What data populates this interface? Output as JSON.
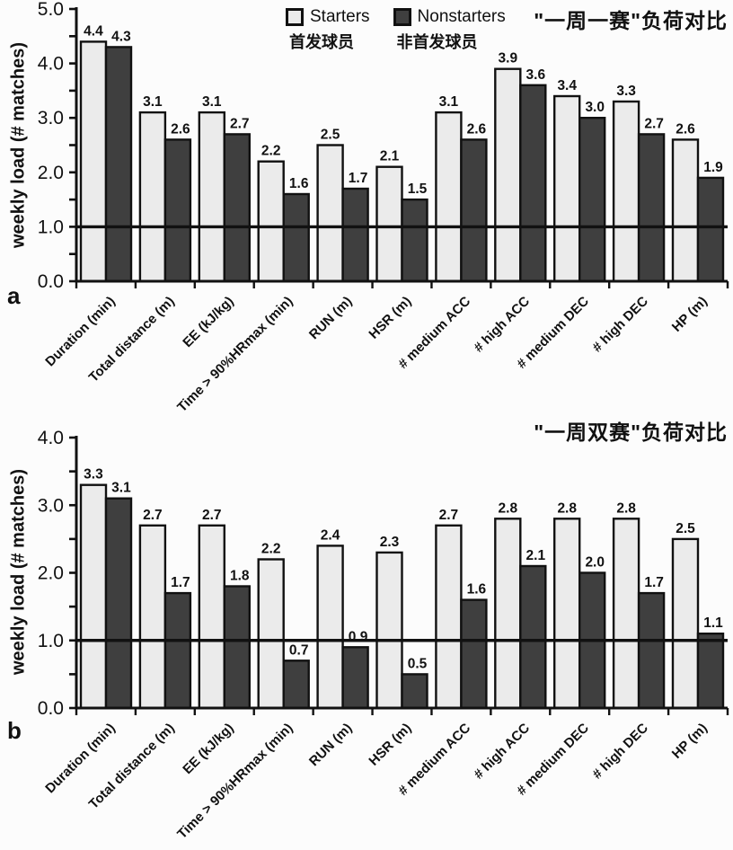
{
  "figure": {
    "background": "#fcfcfc",
    "axis_color": "#111111",
    "bar_stroke": "#111111"
  },
  "legend": {
    "items": [
      {
        "label": "Starters",
        "label_zh": "首发球员",
        "fill": "#ebebeb"
      },
      {
        "label": "Nonstarters",
        "label_zh": "非首发球员",
        "fill": "#3f3f3f"
      }
    ]
  },
  "chart_data": [
    {
      "type": "bar",
      "panel_label": "a",
      "title": "\"一周一赛\"负荷对比",
      "ylabel": "weekly load (# matches)",
      "xlabel": "",
      "ylim": [
        0.0,
        5.0
      ],
      "ytick_step": 1.0,
      "minor_tick_step": 0.5,
      "reference_line_y": 1.0,
      "grid": false,
      "legend_position": "top",
      "categories": [
        "Duration (min)",
        "Total distance (m)",
        "EE (kJ/kg)",
        "Time > 90%HRmax (min)",
        "RUN (m)",
        "HSR (m)",
        "# medium ACC",
        "# high ACC",
        "# medium DEC",
        "# high DEC",
        "HP (m)"
      ],
      "series": [
        {
          "name": "Starters",
          "fill": "#ebebeb",
          "values": [
            4.4,
            3.1,
            3.1,
            2.2,
            2.5,
            2.1,
            3.1,
            3.9,
            3.4,
            3.3,
            2.6
          ]
        },
        {
          "name": "Nonstarters",
          "fill": "#3f3f3f",
          "values": [
            4.3,
            2.6,
            2.7,
            1.6,
            1.7,
            1.5,
            2.6,
            3.6,
            3.0,
            2.7,
            1.9
          ]
        }
      ]
    },
    {
      "type": "bar",
      "panel_label": "b",
      "title": "\"一周双赛\"负荷对比",
      "ylabel": "weekly load (# matches)",
      "xlabel": "",
      "ylim": [
        0.0,
        4.0
      ],
      "ytick_step": 1.0,
      "minor_tick_step": 0.5,
      "reference_line_y": 1.0,
      "grid": false,
      "legend_position": "none",
      "categories": [
        "Duration (min)",
        "Total distance (m)",
        "EE (kJ/kg)",
        "Time > 90%HRmax (min)",
        "RUN (m)",
        "HSR (m)",
        "# medium ACC",
        "# high ACC",
        "# medium DEC",
        "# high DEC",
        "HP (m)"
      ],
      "series": [
        {
          "name": "Starters",
          "fill": "#ebebeb",
          "values": [
            3.3,
            2.7,
            2.7,
            2.2,
            2.4,
            2.3,
            2.7,
            2.8,
            2.8,
            2.8,
            2.5
          ]
        },
        {
          "name": "Nonstarters",
          "fill": "#3f3f3f",
          "values": [
            3.1,
            1.7,
            1.8,
            0.7,
            0.9,
            0.5,
            1.6,
            2.1,
            2.0,
            1.7,
            1.1
          ]
        }
      ]
    }
  ]
}
